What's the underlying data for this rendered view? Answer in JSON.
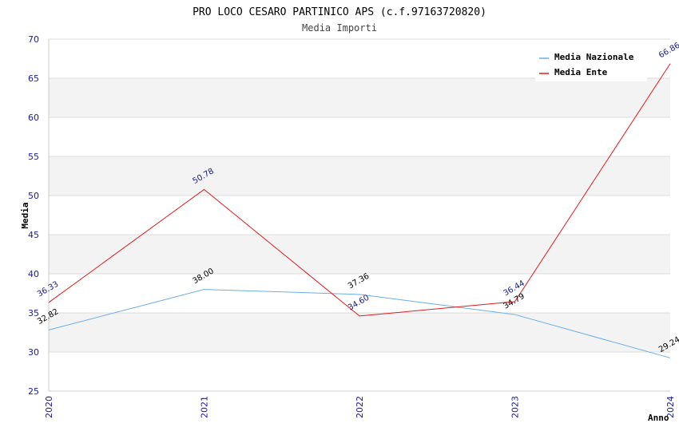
{
  "chart_data": {
    "type": "line",
    "title": "PRO LOCO CESARO PARTINICO APS (c.f.97163720820)",
    "subtitle": "Media Importi",
    "xlabel": "Anno",
    "ylabel": "Media",
    "ylim": [
      25,
      70
    ],
    "yticks": [
      25,
      30,
      35,
      40,
      45,
      50,
      55,
      60,
      65,
      70
    ],
    "categories": [
      "2020",
      "2021",
      "2022",
      "2023",
      "2024"
    ],
    "grid": true,
    "legend_position": "top-right",
    "series": [
      {
        "name": "Media Nazionale",
        "color": "#6aaee8",
        "label_color": "#000000",
        "values": [
          32.82,
          38.0,
          37.36,
          34.79,
          29.24
        ],
        "labels": [
          "32.82",
          "38.00",
          "37.36",
          "34.79",
          "29.24"
        ]
      },
      {
        "name": "Media Ente",
        "color": "#e31a1c",
        "label_color": "#1a1a8c",
        "values": [
          36.33,
          50.78,
          34.6,
          36.44,
          66.86
        ],
        "labels": [
          "36.33",
          "50.78",
          "34.60",
          "36.44",
          "66.86"
        ]
      }
    ]
  }
}
